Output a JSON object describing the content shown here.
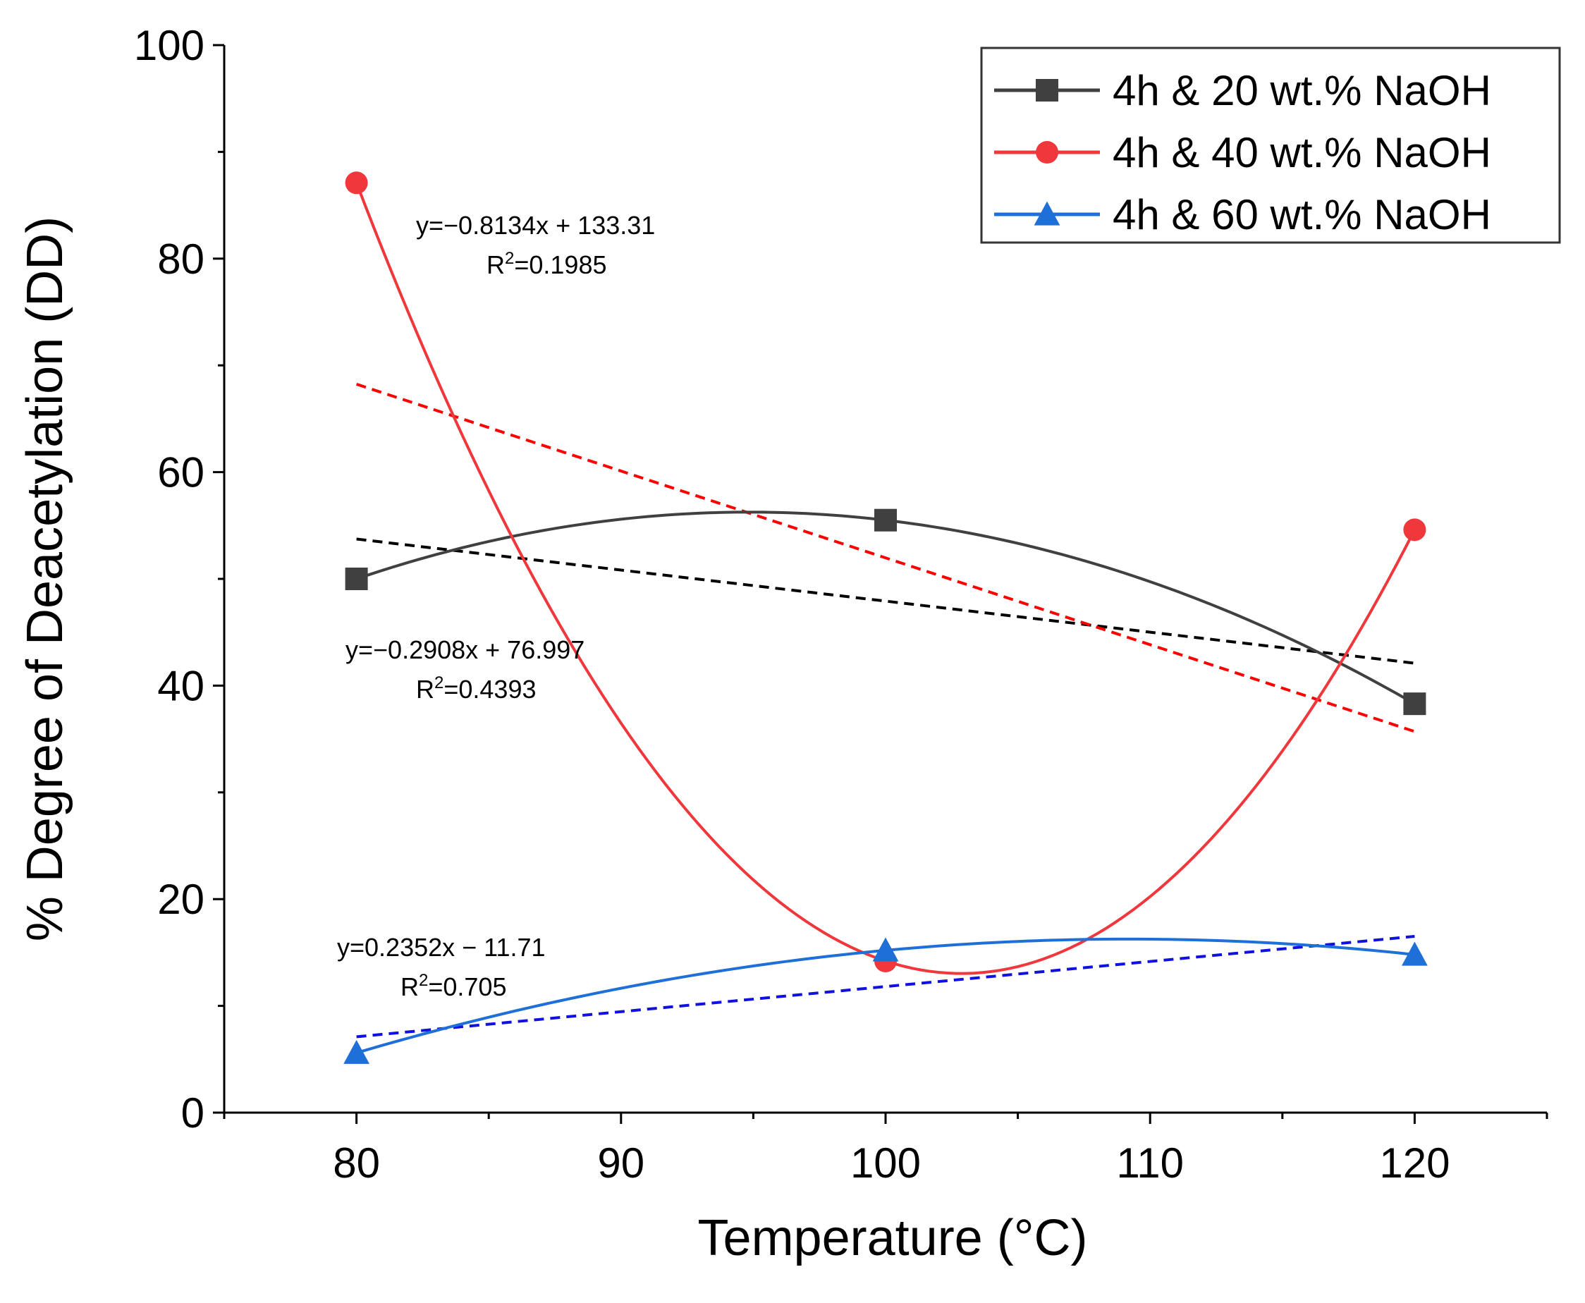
{
  "chart_data": {
    "type": "line",
    "title": "",
    "xlabel": "Temperature (°C)",
    "ylabel": "% Degree of Deacetylation (DD)",
    "xlim": [
      75,
      125
    ],
    "ylim": [
      0,
      100
    ],
    "x_ticks": [
      80,
      90,
      100,
      110,
      120
    ],
    "y_ticks": [
      0,
      20,
      40,
      60,
      80,
      100
    ],
    "x": [
      80,
      100,
      120
    ],
    "legend_position": "top-right",
    "grid": false,
    "series": [
      {
        "name": "4h & 20 wt.% NaOH",
        "color": "#404040",
        "marker": "square",
        "values": [
          50.0,
          55.5,
          38.3
        ],
        "fit_color": "#000000",
        "fit": {
          "slope": -0.2908,
          "intercept": 76.997
        },
        "equation": "y=−0.2908x + 76.997",
        "r2_label": "R",
        "r2_sup": "2",
        "r2_value": "=0.4393"
      },
      {
        "name": "4h & 40 wt.% NaOH",
        "color": "#f0373c",
        "marker": "circle",
        "values": [
          87.1,
          14.2,
          54.6
        ],
        "fit_color": "#ff0000",
        "fit": {
          "slope": -0.8134,
          "intercept": 133.31
        },
        "equation": "y=−0.8134x + 133.31",
        "r2_label": "R",
        "r2_sup": "2",
        "r2_value": "=0.1985"
      },
      {
        "name": "4h & 60 wt.% NaOH",
        "color": "#1f6fd9",
        "marker": "triangle",
        "values": [
          5.6,
          15.2,
          14.8
        ],
        "fit_color": "#1010e0",
        "fit": {
          "slope": 0.2352,
          "intercept": -11.71
        },
        "equation": "y=0.2352x − 11.71",
        "r2_label": "R",
        "r2_sup": "2",
        "r2_value": "=0.705"
      }
    ]
  }
}
